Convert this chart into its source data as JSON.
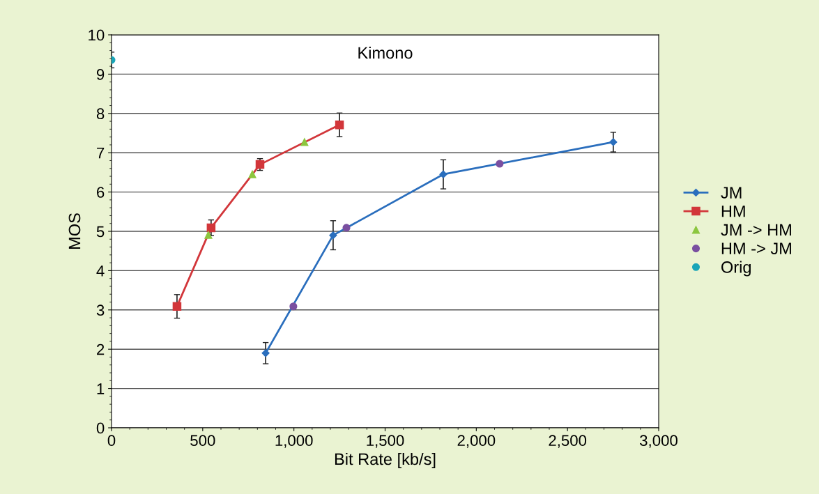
{
  "chart_data": {
    "type": "line",
    "title": "Kimono",
    "xlabel": "Bit Rate [kb/s]",
    "ylabel": "MOS",
    "xlim": [
      0,
      3000
    ],
    "xticks": [
      0,
      500,
      {
        "value": 1000,
        "label": "1,000"
      },
      {
        "value": 1500,
        "label": "1,500"
      },
      {
        "value": 2000,
        "label": "2,000"
      },
      {
        "value": 2500,
        "label": "2,500"
      },
      {
        "value": 3000,
        "label": "3,000"
      }
    ],
    "ylim": [
      0,
      10
    ],
    "yticks": [
      0,
      1,
      2,
      3,
      4,
      5,
      6,
      7,
      8,
      9,
      10
    ],
    "grid": "y",
    "legend": "right",
    "series": [
      {
        "name": "JM",
        "marker": "diamond",
        "color": "#2a6ebd",
        "x": [
          845,
          1215,
          1819,
          2751
        ],
        "values": [
          1.9,
          4.9,
          6.45,
          7.27
        ],
        "errors": [
          0.27,
          0.37,
          0.37,
          0.25
        ]
      },
      {
        "name": "HM",
        "marker": "square",
        "color": "#d2363a",
        "x": [
          359,
          546,
          814,
          1250
        ],
        "values": [
          3.09,
          5.09,
          6.7,
          7.71
        ],
        "errors": [
          0.3,
          0.2,
          0.15,
          0.3
        ]
      },
      {
        "name": "JM -> HM",
        "type": "scatter",
        "marker": "triangle",
        "color": "#8cc63f",
        "x": [
          531,
          772,
          1058
        ],
        "values": [
          4.91,
          6.45,
          7.27
        ]
      },
      {
        "name": "HM -> JM",
        "type": "scatter",
        "marker": "circle",
        "color": "#7a4fa0",
        "x": [
          997,
          1288,
          2128
        ],
        "values": [
          3.09,
          5.09,
          6.72
        ]
      },
      {
        "name": "Orig",
        "type": "scatter",
        "marker": "circle",
        "color": "#1aa5b8",
        "x": [
          0
        ],
        "values": [
          9.36
        ],
        "errors": [
          0.2
        ]
      }
    ]
  }
}
